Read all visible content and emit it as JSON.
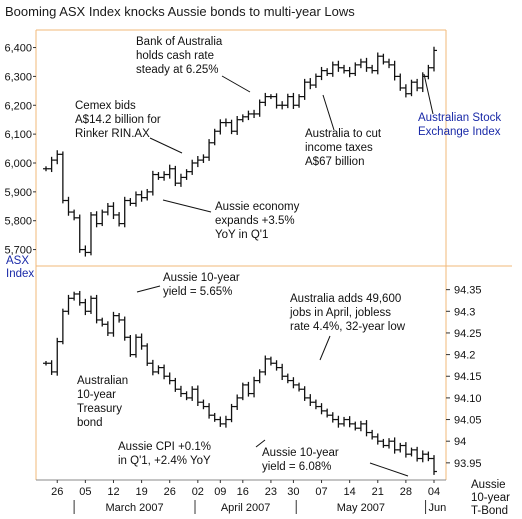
{
  "title": "Booming ASX Index knocks Aussie bonds to multi-year Lows",
  "chart_data": [
    {
      "type": "bar",
      "subtype": "ohlc",
      "name": "ASX Index",
      "ylabel": "ASX Index",
      "ylim": [
        5650,
        6440
      ],
      "yticks": [
        5700,
        5800,
        5900,
        6000,
        6100,
        6200,
        6300,
        6400
      ],
      "x": [
        "Feb 22",
        "Feb 23",
        "Feb 26",
        "Feb 27",
        "Feb 28",
        "Mar 01",
        "Mar 02",
        "Mar 05",
        "Mar 06",
        "Mar 07",
        "Mar 08",
        "Mar 09",
        "Mar 12",
        "Mar 13",
        "Mar 14",
        "Mar 15",
        "Mar 16",
        "Mar 19",
        "Mar 20",
        "Mar 21",
        "Mar 22",
        "Mar 23",
        "Mar 26",
        "Mar 27",
        "Mar 28",
        "Mar 29",
        "Mar 30",
        "Apr 02",
        "Apr 03",
        "Apr 04",
        "Apr 05",
        "Apr 10",
        "Apr 11",
        "Apr 12",
        "Apr 13",
        "Apr 16",
        "Apr 17",
        "Apr 18",
        "Apr 19",
        "Apr 20",
        "Apr 23",
        "Apr 24",
        "Apr 26",
        "Apr 27",
        "Apr 30",
        "May 01",
        "May 02",
        "May 03",
        "May 04",
        "May 07",
        "May 08",
        "May 09",
        "May 10",
        "May 11",
        "May 14",
        "May 15",
        "May 16",
        "May 17",
        "May 18",
        "May 21",
        "May 22",
        "May 23",
        "May 24",
        "May 25",
        "May 28",
        "May 29",
        "May 30",
        "May 31",
        "Jun 01",
        "Jun 04"
      ],
      "series": [
        {
          "name": "ASX Index",
          "values": [
            5980,
            6010,
            6030,
            5870,
            5830,
            5810,
            5700,
            5690,
            5820,
            5790,
            5830,
            5850,
            5820,
            5790,
            5870,
            5860,
            5890,
            5880,
            5900,
            5960,
            5950,
            5960,
            5980,
            5930,
            5950,
            5970,
            6000,
            6010,
            6020,
            6070,
            6110,
            6140,
            6140,
            6110,
            6150,
            6160,
            6170,
            6170,
            6210,
            6230,
            6230,
            6200,
            6200,
            6230,
            6200,
            6230,
            6280,
            6270,
            6300,
            6320,
            6310,
            6340,
            6330,
            6320,
            6310,
            6340,
            6350,
            6330,
            6320,
            6370,
            6350,
            6340,
            6300,
            6260,
            6240,
            6280,
            6260,
            6300,
            6330,
            6390
          ]
        }
      ]
    },
    {
      "type": "bar",
      "subtype": "ohlc",
      "name": "Australian 10-year Treasury bond",
      "ylabel": "Aussie 10-year T-Bond",
      "ylim": [
        93.915,
        94.4
      ],
      "yticks": [
        "94.35",
        "94.3",
        "94.25",
        "94.2",
        "94.15",
        "94.10",
        "94.05",
        "94",
        "93.95"
      ],
      "x": [
        "Feb 22",
        "Feb 23",
        "Feb 26",
        "Feb 27",
        "Feb 28",
        "Mar 01",
        "Mar 02",
        "Mar 05",
        "Mar 06",
        "Mar 07",
        "Mar 08",
        "Mar 09",
        "Mar 12",
        "Mar 13",
        "Mar 14",
        "Mar 15",
        "Mar 16",
        "Mar 19",
        "Mar 20",
        "Mar 21",
        "Mar 22",
        "Mar 23",
        "Mar 26",
        "Mar 27",
        "Mar 28",
        "Mar 29",
        "Mar 30",
        "Apr 02",
        "Apr 03",
        "Apr 04",
        "Apr 05",
        "Apr 10",
        "Apr 11",
        "Apr 12",
        "Apr 13",
        "Apr 16",
        "Apr 17",
        "Apr 18",
        "Apr 19",
        "Apr 20",
        "Apr 23",
        "Apr 24",
        "Apr 26",
        "Apr 27",
        "Apr 30",
        "May 01",
        "May 02",
        "May 03",
        "May 04",
        "May 07",
        "May 08",
        "May 09",
        "May 10",
        "May 11",
        "May 14",
        "May 15",
        "May 16",
        "May 17",
        "May 18",
        "May 21",
        "May 22",
        "May 23",
        "May 24",
        "May 25",
        "May 28",
        "May 29",
        "May 30",
        "May 31",
        "Jun 01",
        "Jun 04"
      ],
      "series": [
        {
          "name": "Australian 10-year Treasury bond",
          "values": [
            94.18,
            94.16,
            94.23,
            94.3,
            94.33,
            94.34,
            94.32,
            94.3,
            94.33,
            94.28,
            94.27,
            94.25,
            94.29,
            94.28,
            94.24,
            94.2,
            94.24,
            94.22,
            94.18,
            94.16,
            94.17,
            94.15,
            94.14,
            94.12,
            94.11,
            94.1,
            94.12,
            94.09,
            94.08,
            94.06,
            94.05,
            94.04,
            94.05,
            94.08,
            94.1,
            94.13,
            94.11,
            94.14,
            94.16,
            94.19,
            94.18,
            94.17,
            94.15,
            94.14,
            94.13,
            94.12,
            94.1,
            94.09,
            94.08,
            94.07,
            94.06,
            94.05,
            94.04,
            94.05,
            94.04,
            94.03,
            94.04,
            94.02,
            94.01,
            94.0,
            93.99,
            94.0,
            93.98,
            93.99,
            93.97,
            93.98,
            93.96,
            93.97,
            93.96,
            93.93
          ]
        }
      ]
    }
  ],
  "xaxis": {
    "day_labels": [
      "26",
      "05",
      "12",
      "19",
      "26",
      "02",
      "09",
      "16",
      "23",
      "30",
      "07",
      "14",
      "21",
      "28",
      "04"
    ],
    "month_labels": [
      "March 2007",
      "April 2007",
      "May 2007",
      "Jun"
    ]
  },
  "labels": {
    "top_axis_line1": "ASX",
    "top_axis_line2": "Index",
    "bottom_axis_line1": "Aussie",
    "bottom_axis_line2": "10-year",
    "bottom_axis_line3": "T-Bond"
  },
  "annotations": {
    "rba": [
      "Bank of Australia",
      "holds cash rate",
      "steady at 6.25%"
    ],
    "cemex": [
      "Cemex bids",
      "A$14.2 billion for",
      "Rinker RIN.AX"
    ],
    "tax": [
      "Australia to cut",
      "income taxes",
      "A$67 billion"
    ],
    "economy": [
      "Aussie economy",
      "expands +3.5%",
      "YoY in Q'1"
    ],
    "asx_series_label": [
      "Australian Stock",
      "Exchange Index"
    ],
    "yield_high": [
      "Aussie 10-year",
      "yield = 5.65%"
    ],
    "jobs": [
      "Australia adds 49,600",
      "jobs in April, jobless",
      "rate 4.4%, 32-year low"
    ],
    "bond_series_label": [
      "Australian",
      "10-year",
      "Treasury",
      "bond"
    ],
    "cpi": [
      "Aussie CPI +0.1%",
      "in Q'1, +2.4% YoY"
    ],
    "yield_low": [
      "Aussie 10-year",
      "yield = 6.08%"
    ]
  },
  "colors": {
    "frame": "#f2b87a",
    "bars": "#111111",
    "series_label": "#1a2aa8"
  }
}
